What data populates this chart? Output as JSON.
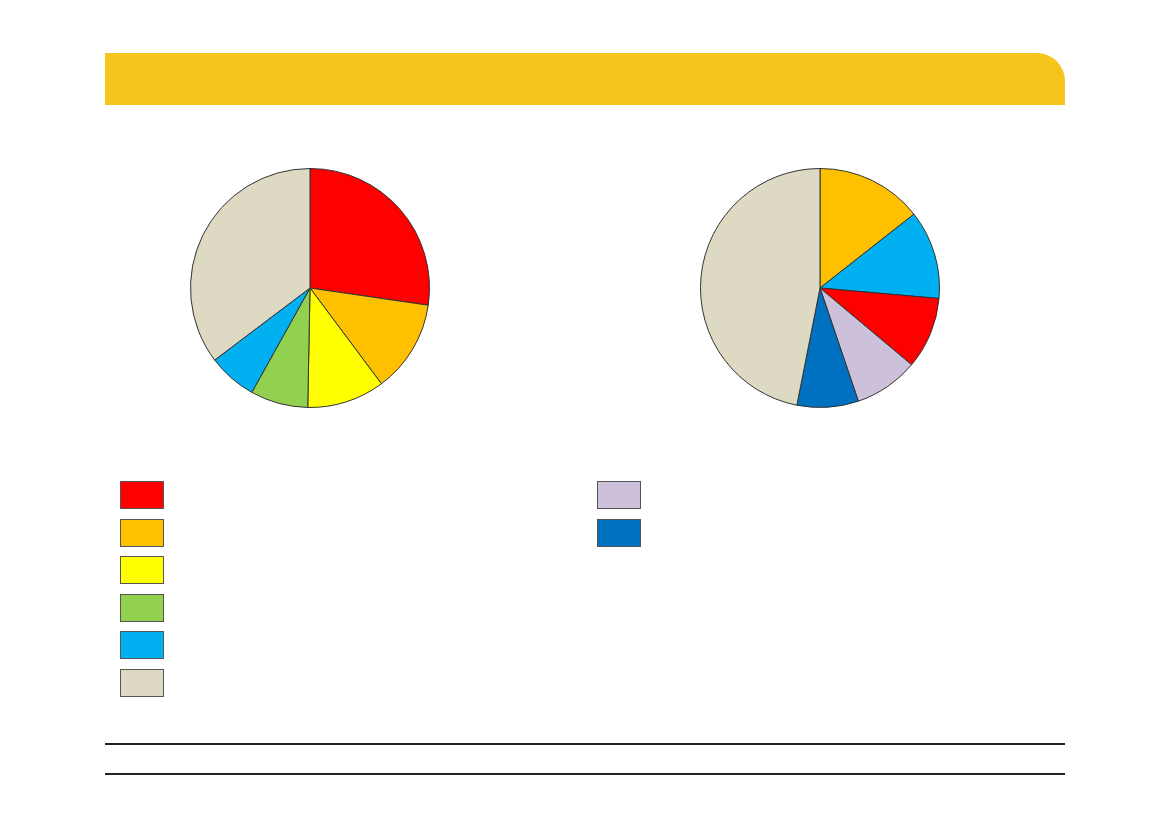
{
  "chart_data": [
    {
      "type": "pie",
      "categories": [
        null,
        null,
        null,
        null,
        null,
        null
      ],
      "values": [
        27.3,
        12.5,
        10.5,
        7.8,
        6.6,
        35.3
      ],
      "colors": [
        "#ff0000",
        "#ffc000",
        "#ffff00",
        "#92d050",
        "#00b0f0",
        "#ddd9c3"
      ]
    },
    {
      "type": "pie",
      "categories": [
        null,
        null,
        null,
        null,
        null,
        null
      ],
      "values": [
        14.4,
        12,
        9.7,
        8.7,
        8.3,
        46.9
      ],
      "colors": [
        "#ffc000",
        "#00b0f0",
        "#ff0000",
        "#ccc0da",
        "#0070c0",
        "#ddd9c3"
      ]
    }
  ]
}
